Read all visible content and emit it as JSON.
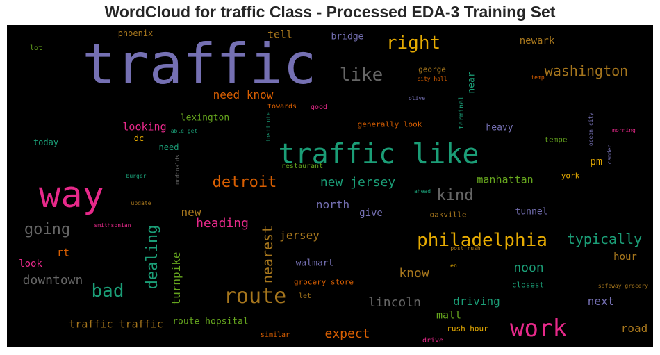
{
  "chart_data": {
    "type": "wordcloud",
    "title": "WordCloud for traffic Class - Processed EDA-3 Training Set",
    "background": "#000000",
    "palette": [
      "#7570b3",
      "#1b9e77",
      "#e7298a",
      "#d95f02",
      "#e6ab02",
      "#a6761d",
      "#666666",
      "#66a61e"
    ],
    "words": [
      {
        "text": "traffic",
        "color": "#7570b3"
      },
      {
        "text": "traffic like",
        "color": "#1b9e77"
      },
      {
        "text": "way",
        "color": "#e7298a"
      },
      {
        "text": "work",
        "color": "#e7298a"
      },
      {
        "text": "route",
        "color": "#a6761d"
      },
      {
        "text": "philadelphia",
        "color": "#e6ab02"
      },
      {
        "text": "right",
        "color": "#e6ab02"
      },
      {
        "text": "bad",
        "color": "#1b9e77"
      },
      {
        "text": "like",
        "color": "#666666"
      },
      {
        "text": "detroit",
        "color": "#d95f02"
      },
      {
        "text": "dealing",
        "color": "#1b9e77"
      },
      {
        "text": "going",
        "color": "#666666"
      },
      {
        "text": "washington",
        "color": "#a6761d"
      },
      {
        "text": "nearest",
        "color": "#a6761d"
      },
      {
        "text": "heading",
        "color": "#e7298a"
      },
      {
        "text": "typically",
        "color": "#1b9e77"
      },
      {
        "text": "downtown",
        "color": "#666666"
      },
      {
        "text": "new jersey",
        "color": "#1b9e77"
      },
      {
        "text": "kind",
        "color": "#666666"
      },
      {
        "text": "lincoln",
        "color": "#666666"
      },
      {
        "text": "turnpike",
        "color": "#66a61e"
      },
      {
        "text": "noon",
        "color": "#1b9e77"
      },
      {
        "text": "know",
        "color": "#a6761d"
      },
      {
        "text": "expect",
        "color": "#d95f02"
      },
      {
        "text": "need know",
        "color": "#d95f02"
      },
      {
        "text": "jersey",
        "color": "#a6761d"
      },
      {
        "text": "new",
        "color": "#a6761d"
      },
      {
        "text": "north",
        "color": "#7570b3"
      },
      {
        "text": "manhattan",
        "color": "#66a61e"
      },
      {
        "text": "driving",
        "color": "#1b9e77"
      },
      {
        "text": "next",
        "color": "#7570b3"
      },
      {
        "text": "looking",
        "color": "#e7298a"
      },
      {
        "text": "traffic traffic",
        "color": "#a6761d"
      },
      {
        "text": "road",
        "color": "#a6761d"
      },
      {
        "text": "mall",
        "color": "#66a61e"
      },
      {
        "text": "tell",
        "color": "#a6761d"
      },
      {
        "text": "rt",
        "color": "#d95f02"
      },
      {
        "text": "hour",
        "color": "#a6761d"
      },
      {
        "text": "pm",
        "color": "#e6ab02"
      },
      {
        "text": "lexington",
        "color": "#66a61e"
      },
      {
        "text": "give",
        "color": "#7570b3"
      },
      {
        "text": "newark",
        "color": "#a6761d"
      },
      {
        "text": "heavy",
        "color": "#7570b3"
      },
      {
        "text": "look",
        "color": "#e7298a"
      },
      {
        "text": "tunnel",
        "color": "#7570b3"
      },
      {
        "text": "walmart",
        "color": "#7570b3"
      },
      {
        "text": "route hopsital",
        "color": "#66a61e"
      },
      {
        "text": "near",
        "color": "#1b9e77"
      },
      {
        "text": "phoenix",
        "color": "#a6761d"
      },
      {
        "text": "bridge",
        "color": "#7570b3"
      },
      {
        "text": "today",
        "color": "#1b9e77"
      },
      {
        "text": "dc",
        "color": "#e6ab02"
      },
      {
        "text": "need",
        "color": "#1b9e77"
      },
      {
        "text": "tempe",
        "color": "#66a61e"
      },
      {
        "text": "york",
        "color": "#e6ab02"
      },
      {
        "text": "grocery store",
        "color": "#d95f02"
      },
      {
        "text": "oakville",
        "color": "#a6761d"
      },
      {
        "text": "closest",
        "color": "#1b9e77"
      },
      {
        "text": "generally look",
        "color": "#d95f02"
      },
      {
        "text": "rush hour",
        "color": "#e6ab02"
      },
      {
        "text": "george",
        "color": "#a6761d"
      },
      {
        "text": "terminal",
        "color": "#1b9e77"
      },
      {
        "text": "lot",
        "color": "#66a61e"
      },
      {
        "text": "towards",
        "color": "#d95f02"
      },
      {
        "text": "good",
        "color": "#e7298a"
      },
      {
        "text": "let",
        "color": "#a6761d"
      },
      {
        "text": "similar",
        "color": "#d95f02"
      },
      {
        "text": "drive",
        "color": "#e7298a"
      },
      {
        "text": "restaurant",
        "color": "#66a61e"
      },
      {
        "text": "city hall",
        "color": "#d95f02"
      },
      {
        "text": "olive",
        "color": "#7570b3"
      },
      {
        "text": "temp",
        "color": "#d95f02"
      },
      {
        "text": "able get",
        "color": "#1b9e77"
      },
      {
        "text": "institute",
        "color": "#1b9e77"
      },
      {
        "text": "burger",
        "color": "#1b9e77"
      },
      {
        "text": "mcdonalds",
        "color": "#666666"
      },
      {
        "text": "update",
        "color": "#a6761d"
      },
      {
        "text": "smithsonian",
        "color": "#e7298a"
      },
      {
        "text": "ahead",
        "color": "#1b9e77"
      },
      {
        "text": "post rush",
        "color": "#a6761d"
      },
      {
        "text": "en",
        "color": "#e6ab02"
      },
      {
        "text": "safeway grocery",
        "color": "#a6761d"
      },
      {
        "text": "ocean city",
        "color": "#7570b3"
      },
      {
        "text": "camden",
        "color": "#7570b3"
      },
      {
        "text": "morning",
        "color": "#e7298a"
      }
    ]
  }
}
